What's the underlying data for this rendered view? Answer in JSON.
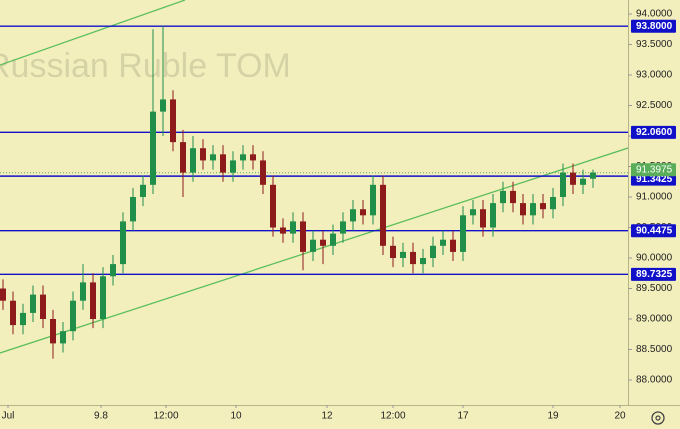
{
  "chart_data": {
    "type": "candlestick",
    "watermark": "Russian Ruble TOM",
    "open": [
      89.5,
      89.3,
      88.9,
      89.1,
      89.4,
      89.0,
      88.6,
      88.8,
      89.3,
      89.6,
      89.0,
      89.7,
      89.9,
      90.6,
      91.0,
      91.2,
      92.4,
      92.6,
      91.9,
      91.4,
      91.8,
      91.6,
      91.7,
      91.4,
      91.6,
      91.7,
      91.6,
      91.2,
      90.5,
      90.4,
      90.6,
      90.1,
      90.3,
      90.2,
      90.4,
      90.6,
      90.8,
      90.7,
      91.2,
      90.2,
      90.0,
      90.1,
      89.9,
      90.0,
      90.2,
      90.3,
      90.1,
      90.7,
      90.8,
      90.5,
      90.9,
      91.1,
      90.9,
      90.7,
      90.9,
      90.8,
      91.0,
      91.4,
      91.2,
      91.3
    ],
    "high": [
      89.65,
      89.45,
      89.25,
      89.55,
      89.55,
      89.15,
      88.95,
      89.45,
      89.9,
      89.75,
      89.85,
      90.05,
      90.75,
      91.15,
      91.35,
      93.75,
      93.8,
      92.75,
      92.1,
      92.0,
      91.95,
      91.85,
      91.85,
      91.75,
      91.85,
      91.85,
      91.75,
      91.35,
      90.65,
      90.75,
      90.75,
      90.45,
      90.45,
      90.55,
      90.75,
      90.95,
      90.95,
      91.35,
      91.35,
      90.35,
      90.25,
      90.25,
      90.15,
      90.35,
      90.45,
      90.45,
      90.85,
      90.95,
      90.95,
      91.05,
      91.25,
      91.25,
      91.05,
      91.05,
      91.05,
      91.15,
      91.55,
      91.55,
      91.45,
      91.45
    ],
    "low": [
      89.15,
      88.75,
      88.75,
      88.95,
      88.85,
      88.35,
      88.45,
      88.65,
      89.15,
      88.85,
      88.85,
      89.55,
      89.75,
      90.45,
      90.85,
      91.05,
      92.0,
      91.75,
      91.0,
      91.25,
      91.45,
      91.45,
      91.25,
      91.25,
      91.45,
      91.45,
      91.05,
      90.35,
      90.25,
      90.25,
      89.8,
      89.95,
      89.9,
      90.05,
      90.25,
      90.45,
      90.55,
      90.55,
      90.05,
      89.85,
      89.85,
      89.75,
      89.75,
      89.85,
      90.05,
      89.95,
      89.95,
      90.55,
      90.35,
      90.35,
      90.75,
      90.75,
      90.55,
      90.55,
      90.65,
      90.65,
      90.85,
      91.05,
      91.05,
      91.15
    ],
    "close": [
      89.3,
      88.9,
      89.1,
      89.4,
      89.0,
      88.6,
      88.8,
      89.3,
      89.6,
      89.0,
      89.7,
      89.9,
      90.6,
      91.0,
      91.2,
      92.4,
      92.6,
      91.9,
      91.4,
      91.8,
      91.6,
      91.7,
      91.4,
      91.6,
      91.7,
      91.6,
      91.2,
      90.5,
      90.4,
      90.6,
      90.1,
      90.3,
      90.2,
      90.4,
      90.6,
      90.8,
      90.7,
      91.2,
      90.2,
      90.0,
      90.1,
      89.9,
      90.0,
      90.2,
      90.3,
      90.1,
      90.7,
      90.8,
      90.5,
      90.9,
      91.1,
      90.9,
      90.7,
      90.9,
      90.8,
      91.0,
      91.4,
      91.2,
      91.3,
      91.4
    ],
    "up_color": "#1f8f4a",
    "down_color": "#8e1b1b",
    "xlim": [
      -0.3,
      62.5
    ],
    "xticks": [
      {
        "value": 0.5,
        "label": "Jul"
      },
      9.8,
      {
        "value": 16.3,
        "label": "12:00"
      },
      {
        "value": 23.3,
        "label": "10"
      },
      {
        "value": 32.4,
        "label": "12"
      },
      {
        "value": 39,
        "label": "12:00"
      },
      {
        "value": 46,
        "label": "17"
      },
      {
        "value": 55,
        "label": "19"
      },
      {
        "value": 61.7,
        "label": "20"
      }
    ],
    "ylim": [
      87.59,
      94.23
    ],
    "yticks": [
      {
        "value": 88,
        "label": "88.0000"
      },
      {
        "value": 88.5,
        "label": "88.5000"
      },
      {
        "value": 89,
        "label": "89.0000"
      },
      {
        "value": 89.5,
        "label": "89.5000"
      },
      {
        "value": 90,
        "label": "90.0000"
      },
      {
        "value": 90.5,
        "label": "90.5000"
      },
      {
        "value": 91,
        "label": "91.0000"
      },
      {
        "value": 91.5,
        "label": "91.5000"
      },
      {
        "value": 92,
        "label": "92.0000"
      },
      {
        "value": 92.5,
        "label": "92.5000"
      },
      {
        "value": 93,
        "label": "93.0000"
      },
      {
        "value": 93.5,
        "label": "93.5000"
      },
      {
        "value": 94,
        "label": "94.0000"
      }
    ],
    "levels": {
      "values": [
        93.8,
        92.06,
        91.3425,
        90.4475,
        89.7325
      ],
      "value_labels": [
        "93.8000",
        "92.0600",
        "91.3425",
        "90.4475",
        "89.7325"
      ],
      "color": "#1010c8"
    },
    "last_price": 91.3975,
    "last_price_color": "#5aae5a",
    "trendlines": {
      "color": "#5cbf5c",
      "lines": [
        {
          "x": [
            -0.3,
            62.5
          ],
          "y": [
            88.443,
            91.803
          ]
        },
        {
          "x": [
            -0.3,
            18.2
          ],
          "y": [
            93.164,
            94.23
          ]
        }
      ]
    }
  }
}
